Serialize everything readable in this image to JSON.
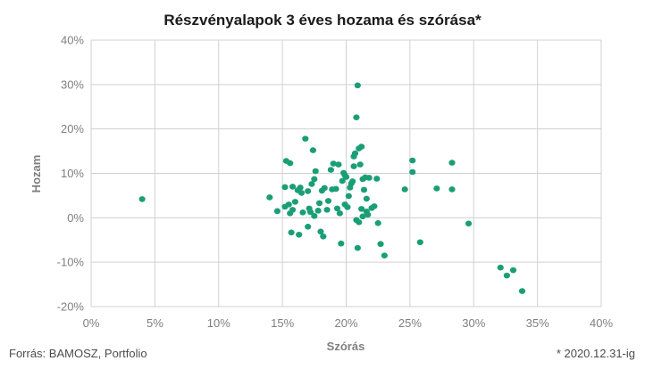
{
  "chart_data": {
    "type": "scatter",
    "title": "Részvényalapok 3 éves hozama és szórása*",
    "xlabel": "Szórás",
    "ylabel": "Hozam",
    "xlim": [
      0,
      40
    ],
    "ylim": [
      -20,
      40
    ],
    "x_ticks": [
      0,
      5,
      10,
      15,
      20,
      25,
      30,
      35,
      40
    ],
    "y_ticks": [
      -20,
      -10,
      0,
      10,
      20,
      30,
      40
    ],
    "x_tick_labels": [
      "0%",
      "5%",
      "10%",
      "15%",
      "20%",
      "25%",
      "30%",
      "35%",
      "40%"
    ],
    "y_tick_labels": [
      "-20%",
      "-10%",
      "0%",
      "10%",
      "20%",
      "30%",
      "40%"
    ],
    "grid": true,
    "marker_color": "#1a9e76",
    "points": [
      [
        4.0,
        4.2
      ],
      [
        14.0,
        4.6
      ],
      [
        14.6,
        1.5
      ],
      [
        15.2,
        6.9
      ],
      [
        15.3,
        12.8
      ],
      [
        15.6,
        12.3
      ],
      [
        15.8,
        7.0
      ],
      [
        15.2,
        2.5
      ],
      [
        15.5,
        3.0
      ],
      [
        15.6,
        1.0
      ],
      [
        15.8,
        1.8
      ],
      [
        16.0,
        3.6
      ],
      [
        16.2,
        6.2
      ],
      [
        16.4,
        6.8
      ],
      [
        16.5,
        5.6
      ],
      [
        15.7,
        -3.3
      ],
      [
        16.3,
        -3.8
      ],
      [
        16.6,
        1.2
      ],
      [
        16.8,
        17.8
      ],
      [
        17.1,
        2.1
      ],
      [
        17.0,
        6.0
      ],
      [
        17.3,
        7.6
      ],
      [
        17.5,
        8.7
      ],
      [
        17.4,
        15.2
      ],
      [
        17.6,
        10.5
      ],
      [
        17.2,
        1.3
      ],
      [
        17.5,
        0.4
      ],
      [
        17.8,
        1.6
      ],
      [
        17.0,
        -2.0
      ],
      [
        17.9,
        3.3
      ],
      [
        18.1,
        6.1
      ],
      [
        18.3,
        6.7
      ],
      [
        18.0,
        -3.1
      ],
      [
        18.2,
        -4.2
      ],
      [
        18.5,
        1.8
      ],
      [
        18.6,
        3.8
      ],
      [
        18.8,
        10.8
      ],
      [
        18.9,
        6.4
      ],
      [
        19.0,
        12.2
      ],
      [
        19.2,
        6.5
      ],
      [
        19.4,
        12.0
      ],
      [
        19.3,
        2.1
      ],
      [
        19.5,
        1.0
      ],
      [
        19.7,
        8.3
      ],
      [
        19.8,
        10.1
      ],
      [
        19.9,
        9.6
      ],
      [
        20.0,
        9.2
      ],
      [
        19.6,
        -5.8
      ],
      [
        19.9,
        3.0
      ],
      [
        20.1,
        2.4
      ],
      [
        20.2,
        4.9
      ],
      [
        20.3,
        6.8
      ],
      [
        20.4,
        7.7
      ],
      [
        20.5,
        8.2
      ],
      [
        20.6,
        11.6
      ],
      [
        20.7,
        14.5
      ],
      [
        20.8,
        22.6
      ],
      [
        20.9,
        29.8
      ],
      [
        20.6,
        13.8
      ],
      [
        21.0,
        15.6
      ],
      [
        21.2,
        16.0
      ],
      [
        21.1,
        12.0
      ],
      [
        21.3,
        8.7
      ],
      [
        21.5,
        9.1
      ],
      [
        21.6,
        4.3
      ],
      [
        21.4,
        6.3
      ],
      [
        21.2,
        2.0
      ],
      [
        20.8,
        -0.5
      ],
      [
        21.0,
        -1.0
      ],
      [
        21.3,
        0.3
      ],
      [
        21.6,
        1.4
      ],
      [
        20.9,
        -6.8
      ],
      [
        21.8,
        9.0
      ],
      [
        22.0,
        2.2
      ],
      [
        22.2,
        2.6
      ],
      [
        22.4,
        8.8
      ],
      [
        22.5,
        -1.2
      ],
      [
        22.7,
        -5.9
      ],
      [
        23.0,
        -8.5
      ],
      [
        21.7,
        0.7
      ],
      [
        24.6,
        6.4
      ],
      [
        25.2,
        12.9
      ],
      [
        25.2,
        10.3
      ],
      [
        25.8,
        -5.5
      ],
      [
        27.1,
        6.6
      ],
      [
        28.3,
        12.4
      ],
      [
        28.3,
        6.4
      ],
      [
        29.6,
        -1.3
      ],
      [
        32.1,
        -11.2
      ],
      [
        32.6,
        -13.0
      ],
      [
        33.1,
        -11.8
      ],
      [
        33.8,
        -16.5
      ]
    ],
    "source": "Forrás: BAMOSZ, Portfolio",
    "footnote": "* 2020.12.31-ig"
  }
}
